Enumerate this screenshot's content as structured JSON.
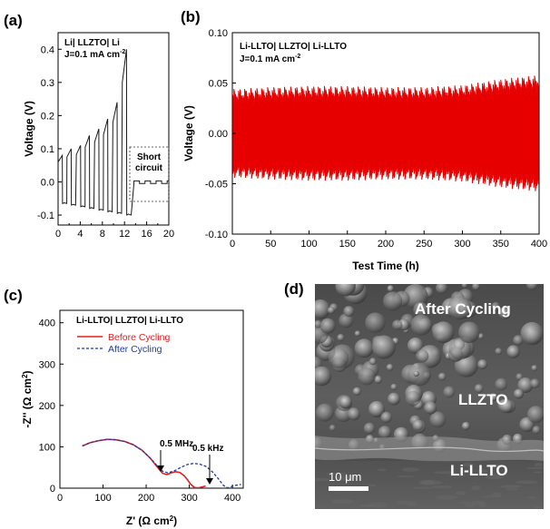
{
  "chart_data": [
    {
      "panel": "(a)",
      "type": "line",
      "annotation_lines": [
        "Li| LLZTO| Li",
        "J=0.1 mA cm"
      ],
      "annotation_sup": "-2",
      "ylabel": "Voltage (V)",
      "xlim": [
        0,
        20
      ],
      "ylim": [
        -0.13,
        0.45
      ],
      "xticks": [
        0,
        4,
        8,
        12,
        16,
        20
      ],
      "xminor": [
        2,
        6,
        10,
        14,
        18
      ],
      "yticks": [
        -0.1,
        0.0,
        0.1,
        0.2,
        0.3,
        0.4
      ],
      "ytick_labels": [
        "-0.1",
        "0.0",
        "0.1",
        "0.2",
        "0.3",
        "0.4"
      ],
      "cycle_peaks": [
        0.08,
        0.1,
        0.11,
        0.14,
        0.16,
        0.19,
        0.24,
        0.4
      ],
      "cycle_starts": [
        0.0,
        1.6,
        3.3,
        4.9,
        6.6,
        8.2,
        9.9,
        11.6
      ],
      "cycle_period": 1.6,
      "negative_level_start": -0.065,
      "negative_level_end": -0.1,
      "short_circuit_start": 13.7,
      "short_circuit_end": 20.0,
      "short_circuit_level": -0.005,
      "short_circuit_amplitude": 0.008,
      "short_circuit_label": [
        "Short",
        "circuit"
      ],
      "series_color": "#1a1a1a"
    },
    {
      "panel": "(b)",
      "type": "line",
      "annotation_lines": [
        "Li-LLTO| LLZTO| Li-LLTO",
        "J=0.1 mA cm"
      ],
      "annotation_sup": "-2",
      "ylabel": "Voltage (V)",
      "xlabel": "Test Time (h)",
      "xlim": [
        0,
        400
      ],
      "ylim": [
        -0.1,
        0.1
      ],
      "xticks": [
        0,
        50,
        100,
        150,
        200,
        250,
        300,
        350,
        400
      ],
      "yticks": [
        -0.1,
        -0.05,
        0.0,
        0.05,
        0.1
      ],
      "ytick_labels": [
        "-0.10",
        "-0.05",
        "0.00",
        "0.05",
        "0.10"
      ],
      "cycle_count": 200,
      "amplitude_envelope_x": [
        0,
        50,
        100,
        150,
        200,
        250,
        300,
        350,
        400
      ],
      "amplitude_envelope_y": [
        0.04,
        0.042,
        0.043,
        0.043,
        0.042,
        0.042,
        0.044,
        0.05,
        0.054
      ],
      "series_color": "#e60000"
    },
    {
      "panel": "(c)",
      "type": "line",
      "annotation": "Li-LLTO| LLZTO| Li-LLTO",
      "xlabel": "Z' (Ω cm",
      "xlabel_sup": "2",
      "ylabel": "-Z'' (Ω cm",
      "ylabel_sup": "2",
      "xlim": [
        0,
        425
      ],
      "ylim": [
        0,
        430
      ],
      "xticks": [
        0,
        100,
        200,
        300,
        400
      ],
      "yticks": [
        0,
        100,
        200,
        300,
        400
      ],
      "legend_position": "top-left",
      "series": [
        {
          "name": "Before Cycling",
          "color": "#e02020",
          "dash": "solid",
          "x": [
            52,
            70,
            90,
            110,
            130,
            150,
            170,
            190,
            210,
            225,
            238,
            248,
            258,
            268,
            278,
            288,
            296,
            302,
            308,
            312,
            316,
            322,
            330,
            338
          ],
          "y": [
            102,
            110,
            115,
            118,
            117,
            113,
            105,
            92,
            72,
            52,
            36,
            33,
            37,
            40,
            38,
            30,
            20,
            11,
            5,
            2,
            1,
            1,
            3,
            5
          ]
        },
        {
          "name": "After Cycling",
          "color": "#1a3aa8",
          "dash": "dashed",
          "x": [
            52,
            70,
            90,
            110,
            130,
            150,
            170,
            190,
            210,
            225,
            238,
            250,
            265,
            280,
            295,
            310,
            325,
            340,
            355,
            368,
            378,
            385,
            390,
            398,
            408,
            420
          ],
          "y": [
            102,
            110,
            115,
            118,
            117,
            113,
            105,
            92,
            72,
            55,
            41,
            37,
            42,
            50,
            57,
            60,
            58,
            52,
            38,
            22,
            8,
            2,
            1,
            4,
            7,
            9
          ]
        }
      ],
      "annotations": [
        {
          "text": "0.5 MHz",
          "x": 240,
          "y": 35
        },
        {
          "text": "0.5 kHz",
          "x": 388,
          "y": 2
        }
      ]
    }
  ],
  "sem": {
    "panel": "(d)",
    "labels": [
      "After Cycling",
      "LLZTO",
      "Li-LLTO"
    ],
    "scalebar": "10 μm"
  }
}
